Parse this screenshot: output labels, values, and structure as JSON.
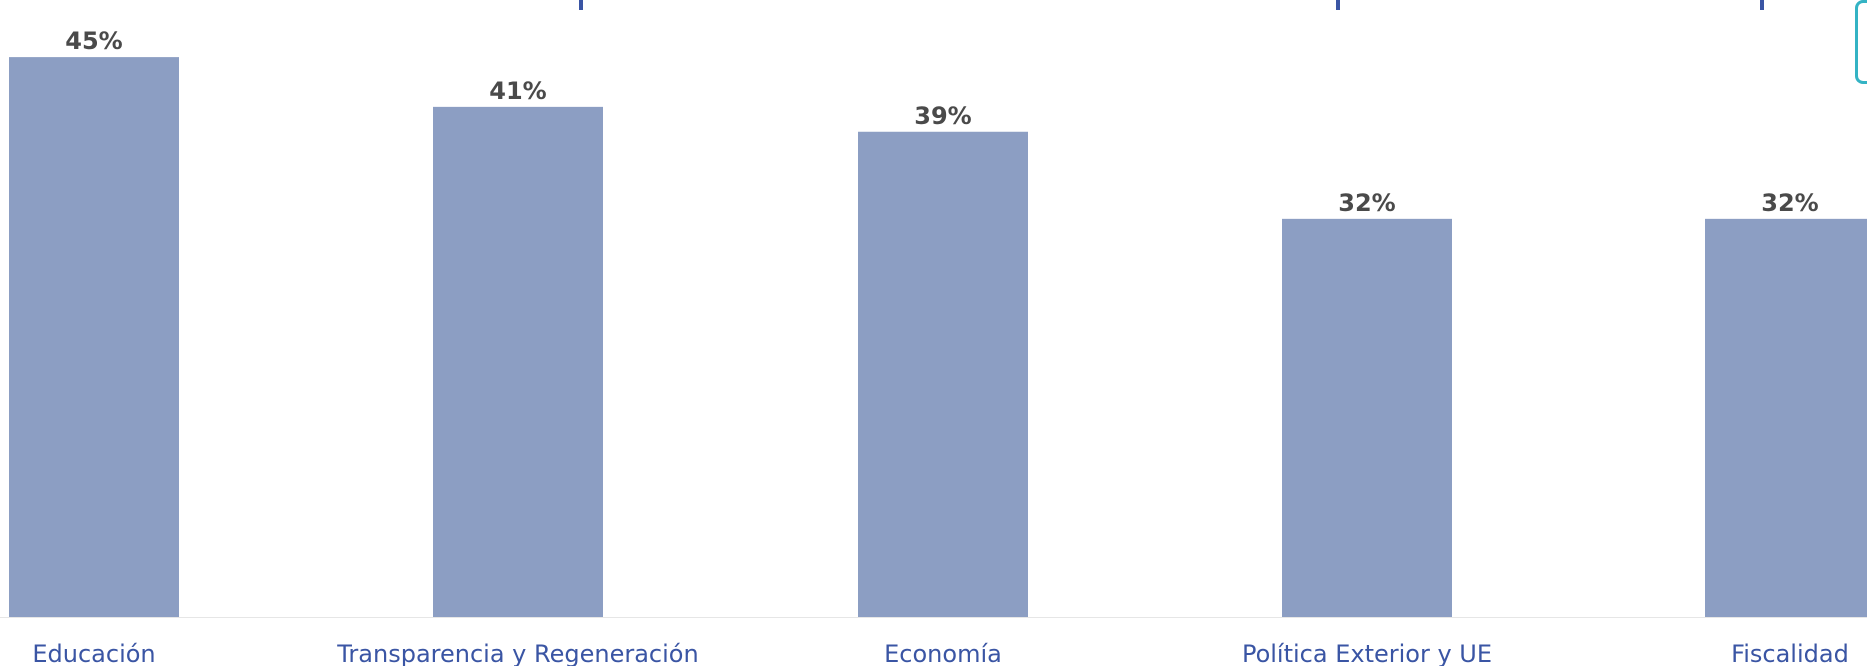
{
  "chart_data": {
    "type": "bar",
    "categories": [
      "Educación",
      "Transparencia y Regeneración",
      "Economía",
      "Política Exterior y UE",
      "Fiscalidad"
    ],
    "values": [
      45,
      41,
      39,
      32,
      32
    ],
    "value_labels": [
      "45%",
      "41%",
      "39%",
      "32%",
      "32%"
    ],
    "unit": "%",
    "title": "",
    "xlabel": "",
    "ylabel": "",
    "ylim": [
      0,
      47.5
    ],
    "grid": false,
    "colors": {
      "bar": "#8c9ec3",
      "value_label": "#4a4a4a",
      "category_label": "#3a55a4",
      "title": "#3a55a4",
      "legend_border": "#34b3c4"
    }
  }
}
